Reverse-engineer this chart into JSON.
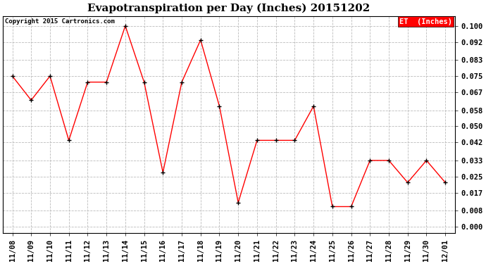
{
  "title": "Evapotranspiration per Day (Inches) 20151202",
  "copyright": "Copyright 2015 Cartronics.com",
  "legend_label": "ET  (Inches)",
  "x_labels": [
    "11/08",
    "11/09",
    "11/10",
    "11/11",
    "11/12",
    "11/13",
    "11/14",
    "11/15",
    "11/16",
    "11/17",
    "11/18",
    "11/19",
    "11/20",
    "11/21",
    "11/22",
    "11/23",
    "11/24",
    "11/25",
    "11/26",
    "11/27",
    "11/28",
    "11/29",
    "11/30",
    "12/01"
  ],
  "y_values": [
    0.075,
    0.063,
    0.075,
    0.043,
    0.072,
    0.072,
    0.1,
    0.072,
    0.027,
    0.072,
    0.093,
    0.06,
    0.012,
    0.043,
    0.043,
    0.043,
    0.06,
    0.01,
    0.01,
    0.033,
    0.033,
    0.022,
    0.033,
    0.022
  ],
  "y_ticks": [
    0.0,
    0.008,
    0.017,
    0.025,
    0.033,
    0.042,
    0.05,
    0.058,
    0.067,
    0.075,
    0.083,
    0.092,
    0.1
  ],
  "line_color": "#ff0000",
  "marker_color": "#000000",
  "legend_bg": "#ff0000",
  "legend_text_color": "#ffffff",
  "background_color": "#ffffff",
  "grid_color": "#bbbbbb",
  "title_fontsize": 11,
  "tick_fontsize": 7.5,
  "copyright_fontsize": 6.5,
  "legend_fontsize": 7.5,
  "ylim": [
    -0.003,
    0.105
  ]
}
